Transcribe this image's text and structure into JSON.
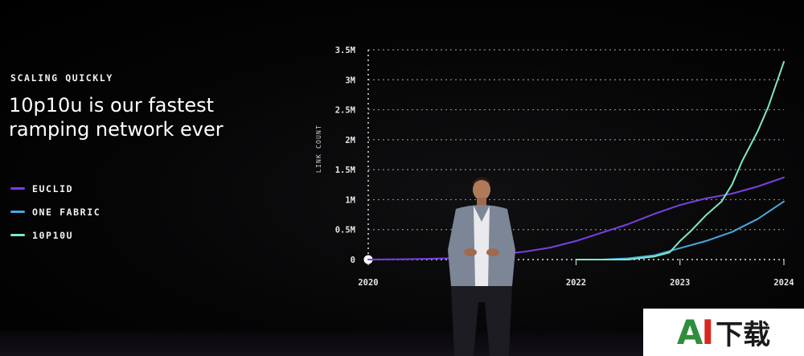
{
  "slide": {
    "eyebrow": "SCALING QUICKLY",
    "headline": "10p10u is our fastest ramping network ever"
  },
  "legend": [
    {
      "label": "EUCLID",
      "color": "#7b3fe4"
    },
    {
      "label": "ONE FABRIC",
      "color": "#4aa8e0"
    },
    {
      "label": "10P10U",
      "color": "#7fe8c2"
    }
  ],
  "watermark": {
    "brand_a": "A",
    "brand_i": "I",
    "brand_cn": "下载"
  },
  "chart_data": {
    "type": "line",
    "ylabel": "LINK COUNT",
    "ylim": [
      0,
      3500000
    ],
    "yticks": [
      {
        "value": 0,
        "label": "0"
      },
      {
        "value": 500000,
        "label": "0.5M"
      },
      {
        "value": 1000000,
        "label": "1M"
      },
      {
        "value": 1500000,
        "label": "1.5M"
      },
      {
        "value": 2000000,
        "label": "2M"
      },
      {
        "value": 2500000,
        "label": "2.5M"
      },
      {
        "value": 3000000,
        "label": "3M"
      },
      {
        "value": 3500000,
        "label": "3.5M"
      }
    ],
    "xlim": [
      2020.0,
      2024.0
    ],
    "xticks": [
      {
        "value": 2020,
        "label": "2020"
      },
      {
        "value": 2022,
        "label": "2022"
      },
      {
        "value": 2023,
        "label": "2023"
      },
      {
        "value": 2024,
        "label": "2024"
      }
    ],
    "grid": "horizontal dotted",
    "legend_position": "left",
    "series": [
      {
        "name": "EUCLID",
        "color": "#7b3fe4",
        "x": [
          2020.0,
          2020.5,
          2020.75,
          2021.0,
          2021.25,
          2021.5,
          2021.75,
          2022.0,
          2022.25,
          2022.5,
          2022.75,
          2023.0,
          2023.25,
          2023.5,
          2023.75,
          2024.0
        ],
        "y": [
          0,
          10000,
          20000,
          40000,
          80000,
          130000,
          200000,
          310000,
          450000,
          590000,
          760000,
          910000,
          1020000,
          1100000,
          1220000,
          1370000
        ]
      },
      {
        "name": "ONE FABRIC",
        "color": "#4aa8e0",
        "x": [
          2022.0,
          2022.25,
          2022.5,
          2022.75,
          2023.0,
          2023.25,
          2023.5,
          2023.75,
          2024.0
        ],
        "y": [
          0,
          0,
          20000,
          70000,
          190000,
          310000,
          460000,
          680000,
          970000
        ]
      },
      {
        "name": "10P10U",
        "color": "#7fe8c2",
        "x": [
          2022.0,
          2022.5,
          2022.75,
          2022.9,
          2023.0,
          2023.1,
          2023.25,
          2023.4,
          2023.5,
          2023.6,
          2023.75,
          2023.85,
          2024.0
        ],
        "y": [
          0,
          0,
          50000,
          120000,
          310000,
          470000,
          740000,
          970000,
          1250000,
          1650000,
          2150000,
          2550000,
          3300000
        ]
      }
    ]
  }
}
